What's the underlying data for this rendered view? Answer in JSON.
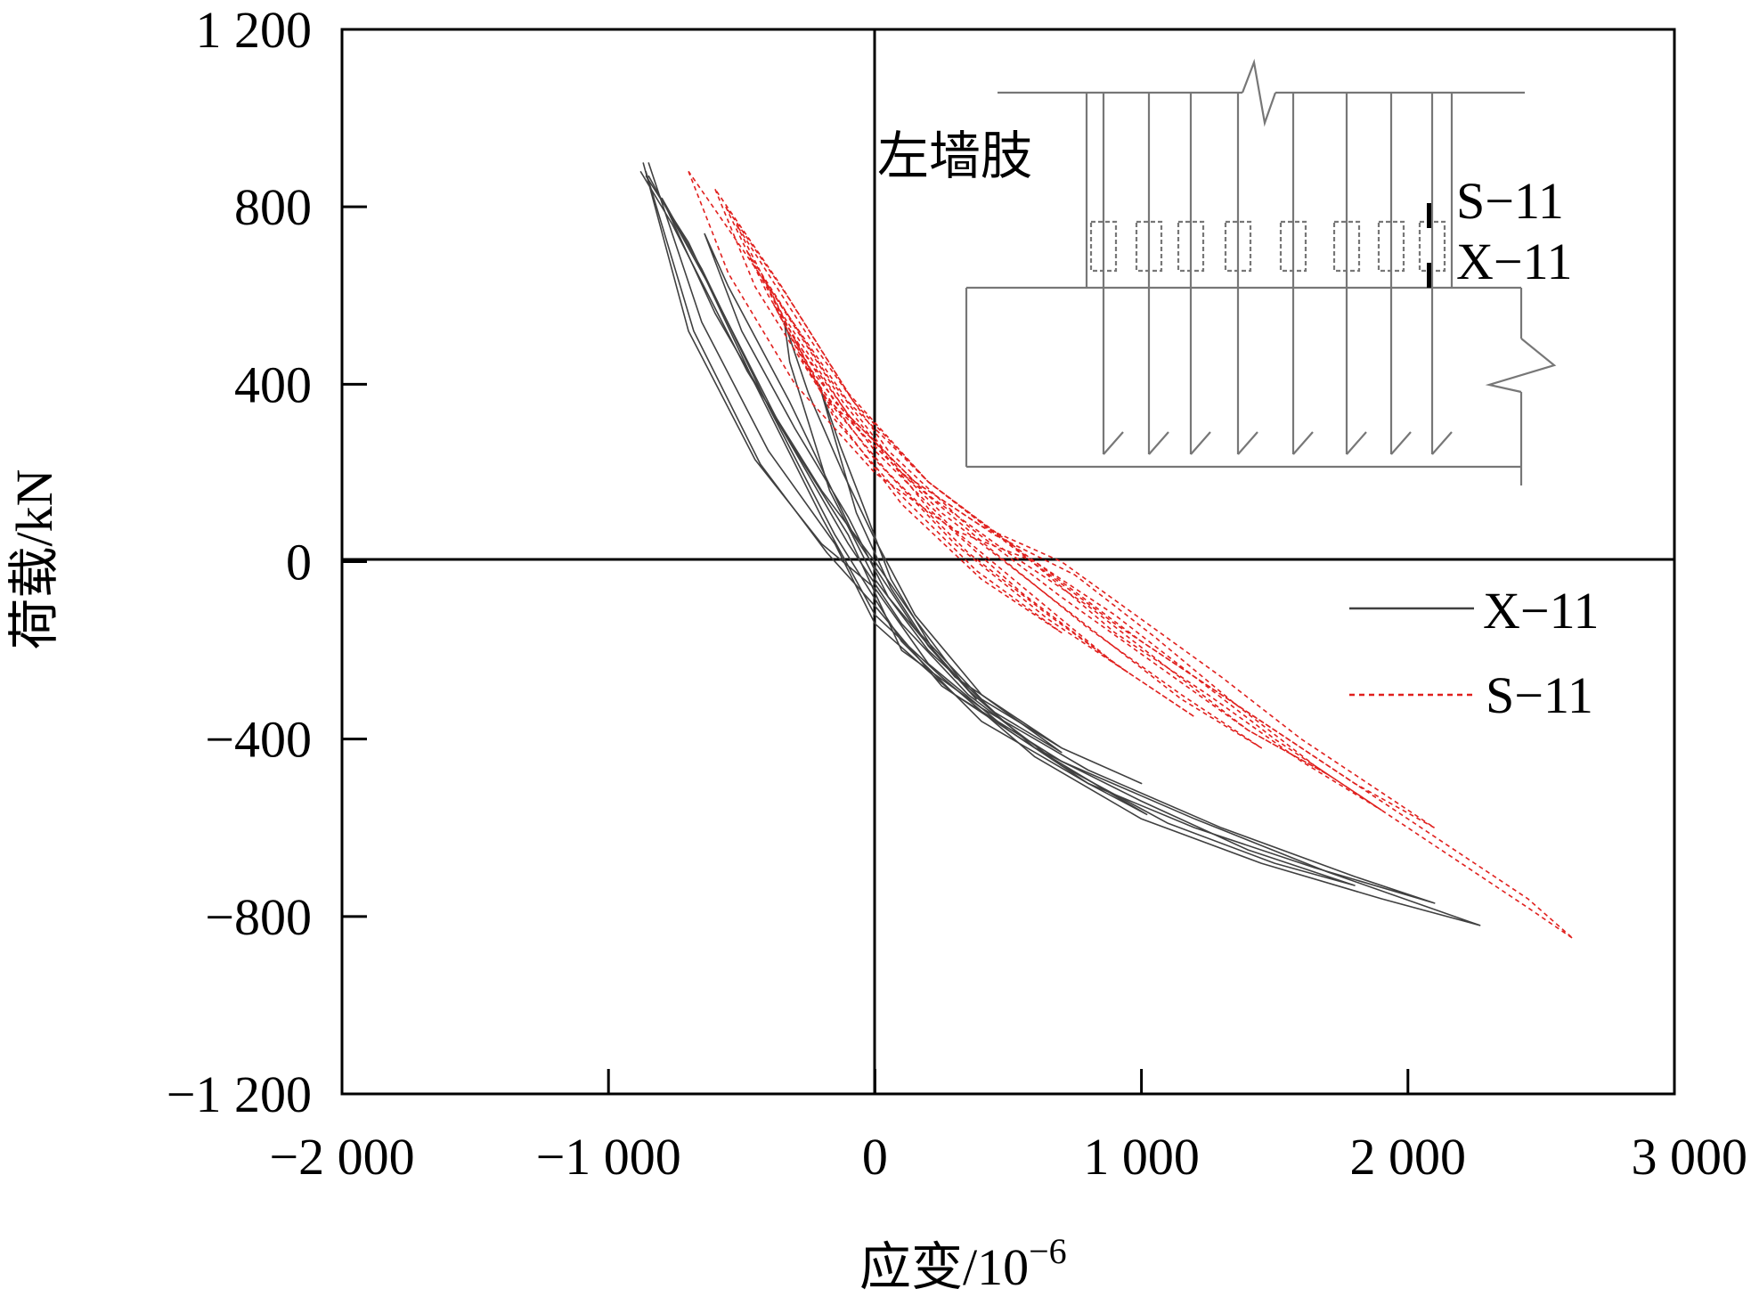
{
  "chart_data": {
    "type": "line",
    "title": "",
    "xlabel": "应变/10",
    "xlabel_sup": "−6",
    "ylabel": "荷载/kN",
    "xlim": [
      -2000,
      3000
    ],
    "ylim": [
      -1200,
      1200
    ],
    "x_ticks": [
      -2000,
      -1000,
      0,
      1000,
      2000,
      3000
    ],
    "y_ticks": [
      -1200,
      -800,
      -400,
      0,
      400,
      800,
      1200
    ],
    "x_tick_labels": [
      "−2 000",
      "−1 000",
      "0",
      "1 000",
      "2 000",
      "3 000"
    ],
    "y_tick_labels": [
      "−1 200",
      "−800",
      "−400",
      "0",
      "400",
      "800",
      "1 200"
    ],
    "grid": false,
    "legend_position": "right",
    "series": [
      {
        "name": "X-11",
        "legend_label": "X−11",
        "color": "#404040",
        "dash": "solid",
        "loops": [
          [
            [
              -870,
              900
            ],
            [
              -700,
              520
            ],
            [
              -450,
              230
            ],
            [
              -200,
              40
            ],
            [
              0,
              -60
            ],
            [
              200,
              -230
            ],
            [
              500,
              -380
            ],
            [
              800,
              -500
            ],
            [
              1020,
              -570
            ],
            [
              850,
              -510
            ],
            [
              600,
              -420
            ],
            [
              350,
              -290
            ],
            [
              150,
              -130
            ],
            [
              0,
              0
            ],
            [
              -200,
              160
            ],
            [
              -480,
              430
            ],
            [
              -760,
              760
            ],
            [
              -880,
              880
            ]
          ],
          [
            [
              -860,
              880
            ],
            [
              -680,
              520
            ],
            [
              -430,
              220
            ],
            [
              -180,
              20
            ],
            [
              0,
              -100
            ],
            [
              250,
              -280
            ],
            [
              600,
              -420
            ],
            [
              1000,
              -540
            ],
            [
              1400,
              -650
            ],
            [
              1800,
              -730
            ],
            [
              1500,
              -680
            ],
            [
              1100,
              -590
            ],
            [
              700,
              -460
            ],
            [
              350,
              -300
            ],
            [
              100,
              -140
            ],
            [
              -100,
              40
            ],
            [
              -350,
              300
            ],
            [
              -620,
              620
            ],
            [
              -850,
              870
            ]
          ],
          [
            [
              -850,
              900
            ],
            [
              -650,
              540
            ],
            [
              -400,
              250
            ],
            [
              -150,
              40
            ],
            [
              0,
              -140
            ],
            [
              300,
              -300
            ],
            [
              700,
              -450
            ],
            [
              1200,
              -580
            ],
            [
              1700,
              -700
            ],
            [
              2270,
              -820
            ],
            [
              1900,
              -760
            ],
            [
              1450,
              -680
            ],
            [
              1000,
              -580
            ],
            [
              600,
              -440
            ],
            [
              250,
              -260
            ],
            [
              0,
              -120
            ],
            [
              -200,
              100
            ],
            [
              -450,
              400
            ],
            [
              -700,
              720
            ],
            [
              -860,
              870
            ]
          ],
          [
            [
              -800,
              820
            ],
            [
              -600,
              560
            ],
            [
              -350,
              300
            ],
            [
              -100,
              60
            ],
            [
              100,
              -200
            ],
            [
              400,
              -330
            ],
            [
              800,
              -470
            ],
            [
              1300,
              -600
            ],
            [
              1800,
              -710
            ],
            [
              2100,
              -770
            ],
            [
              1650,
              -690
            ],
            [
              1200,
              -600
            ],
            [
              800,
              -500
            ],
            [
              400,
              -360
            ],
            [
              100,
              -180
            ],
            [
              -150,
              60
            ],
            [
              -400,
              350
            ],
            [
              -650,
              660
            ],
            [
              -800,
              820
            ]
          ],
          [
            [
              -640,
              740
            ],
            [
              -500,
              520
            ],
            [
              -300,
              300
            ],
            [
              -100,
              100
            ],
            [
              50,
              -80
            ],
            [
              300,
              -260
            ],
            [
              700,
              -420
            ],
            [
              1000,
              -500
            ],
            [
              700,
              -420
            ],
            [
              400,
              -310
            ],
            [
              150,
              -150
            ],
            [
              -80,
              60
            ],
            [
              -320,
              360
            ],
            [
              -550,
              620
            ],
            [
              -640,
              740
            ]
          ],
          [
            [
              -340,
              540
            ],
            [
              -250,
              380
            ],
            [
              -120,
              200
            ],
            [
              0,
              50
            ],
            [
              150,
              -120
            ],
            [
              400,
              -300
            ],
            [
              700,
              -430
            ],
            [
              450,
              -340
            ],
            [
              200,
              -200
            ],
            [
              0,
              -40
            ],
            [
              -170,
              160
            ],
            [
              -320,
              450
            ],
            [
              -340,
              540
            ]
          ],
          [
            [
              -210,
              400
            ],
            [
              -130,
              260
            ],
            [
              -40,
              120
            ],
            [
              60,
              -40
            ],
            [
              220,
              -200
            ],
            [
              380,
              -310
            ],
            [
              200,
              -190
            ],
            [
              60,
              -60
            ],
            [
              -70,
              110
            ],
            [
              -210,
              400
            ]
          ]
        ]
      },
      {
        "name": "S-11",
        "legend_label": "S−11",
        "color": "#e0201e",
        "dash": "dashed",
        "loops": [
          [
            [
              -700,
              880
            ],
            [
              -550,
              650
            ],
            [
              -300,
              400
            ],
            [
              0,
              200
            ],
            [
              300,
              70
            ],
            [
              600,
              0
            ],
            [
              900,
              -120
            ],
            [
              1200,
              -260
            ],
            [
              1500,
              -400
            ],
            [
              1800,
              -520
            ],
            [
              2100,
              -640
            ],
            [
              2450,
              -780
            ],
            [
              2620,
              -850
            ],
            [
              2450,
              -760
            ],
            [
              2100,
              -620
            ],
            [
              1700,
              -460
            ],
            [
              1300,
              -300
            ],
            [
              900,
              -140
            ],
            [
              500,
              40
            ],
            [
              200,
              180
            ],
            [
              -100,
              360
            ],
            [
              -400,
              620
            ],
            [
              -700,
              880
            ]
          ],
          [
            [
              -600,
              840
            ],
            [
              -450,
              620
            ],
            [
              -200,
              380
            ],
            [
              100,
              200
            ],
            [
              400,
              80
            ],
            [
              700,
              0
            ],
            [
              1000,
              -130
            ],
            [
              1300,
              -260
            ],
            [
              1600,
              -400
            ],
            [
              1900,
              -520
            ],
            [
              2100,
              -600
            ],
            [
              1800,
              -500
            ],
            [
              1400,
              -340
            ],
            [
              1000,
              -180
            ],
            [
              600,
              0
            ],
            [
              200,
              180
            ],
            [
              -100,
              380
            ],
            [
              -350,
              620
            ],
            [
              -600,
              840
            ]
          ],
          [
            [
              -560,
              800
            ],
            [
              -400,
              600
            ],
            [
              -150,
              360
            ],
            [
              150,
              180
            ],
            [
              450,
              60
            ],
            [
              750,
              -30
            ],
            [
              1050,
              -170
            ],
            [
              1350,
              -320
            ],
            [
              1650,
              -460
            ],
            [
              1900,
              -560
            ],
            [
              1600,
              -450
            ],
            [
              1250,
              -300
            ],
            [
              900,
              -160
            ],
            [
              550,
              20
            ],
            [
              200,
              180
            ],
            [
              -80,
              360
            ],
            [
              -330,
              600
            ],
            [
              -560,
              800
            ]
          ],
          [
            [
              -520,
              760
            ],
            [
              -350,
              560
            ],
            [
              -100,
              330
            ],
            [
              200,
              150
            ],
            [
              500,
              20
            ],
            [
              800,
              -100
            ],
            [
              1100,
              -240
            ],
            [
              1400,
              -380
            ],
            [
              1700,
              -480
            ],
            [
              1400,
              -380
            ],
            [
              1050,
              -230
            ],
            [
              700,
              -80
            ],
            [
              350,
              80
            ],
            [
              50,
              250
            ],
            [
              -220,
              480
            ],
            [
              -520,
              760
            ]
          ],
          [
            [
              -480,
              700
            ],
            [
              -300,
              500
            ],
            [
              -50,
              290
            ],
            [
              250,
              110
            ],
            [
              550,
              -30
            ],
            [
              850,
              -170
            ],
            [
              1150,
              -310
            ],
            [
              1450,
              -420
            ],
            [
              1150,
              -300
            ],
            [
              800,
              -150
            ],
            [
              450,
              20
            ],
            [
              100,
              200
            ],
            [
              -180,
              420
            ],
            [
              -480,
              700
            ]
          ],
          [
            [
              -420,
              640
            ],
            [
              -250,
              440
            ],
            [
              0,
              250
            ],
            [
              300,
              70
            ],
            [
              600,
              -80
            ],
            [
              900,
              -230
            ],
            [
              1200,
              -350
            ],
            [
              900,
              -230
            ],
            [
              550,
              -70
            ],
            [
              200,
              120
            ],
            [
              -120,
              360
            ],
            [
              -420,
              640
            ]
          ],
          [
            [
              -380,
              580
            ],
            [
              -200,
              380
            ],
            [
              50,
              200
            ],
            [
              350,
              20
            ],
            [
              650,
              -120
            ],
            [
              950,
              -250
            ],
            [
              650,
              -130
            ],
            [
              300,
              40
            ],
            [
              0,
              230
            ],
            [
              -250,
              430
            ],
            [
              -380,
              580
            ]
          ],
          [
            [
              -300,
              500
            ],
            [
              -150,
              320
            ],
            [
              80,
              160
            ],
            [
              380,
              -20
            ],
            [
              700,
              -160
            ],
            [
              400,
              -40
            ],
            [
              100,
              130
            ],
            [
              -150,
              330
            ],
            [
              -300,
              500
            ]
          ]
        ]
      }
    ]
  },
  "inset": {
    "title": "左墙肢",
    "label_top": "S−11",
    "label_bottom": "X−11"
  }
}
